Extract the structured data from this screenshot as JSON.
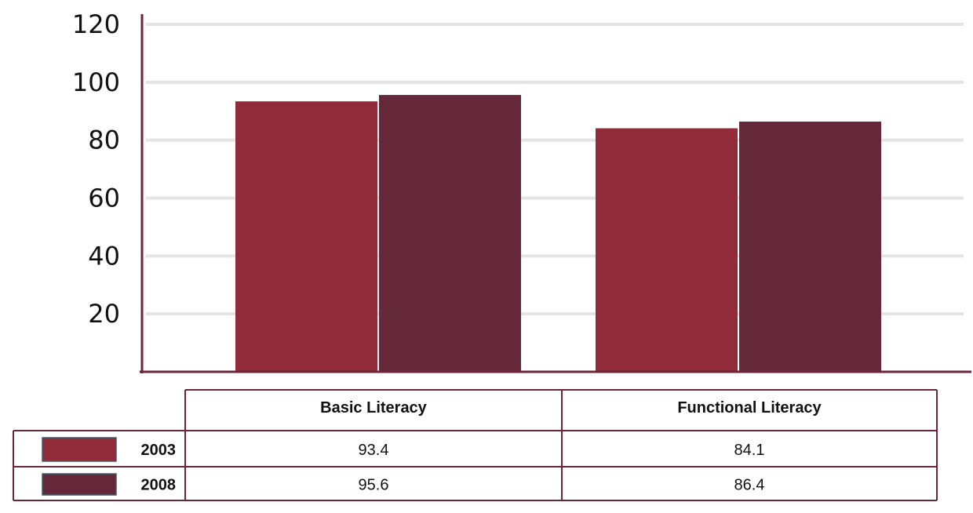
{
  "chart_data": {
    "type": "bar",
    "categories": [
      "Basic Literacy",
      "Functional Literacy"
    ],
    "series": [
      {
        "name": "2003",
        "values": [
          93.4,
          84.1
        ],
        "color": "#922b39"
      },
      {
        "name": "2008",
        "values": [
          95.6,
          86.4
        ],
        "color": "#652838"
      }
    ],
    "y_ticks": [
      20,
      40,
      60,
      80,
      100,
      120
    ],
    "ylim": [
      0,
      120
    ],
    "grid": true,
    "legend": "data table below chart",
    "axis_color": "#6b2638",
    "grid_color": "#e4e4e4"
  }
}
